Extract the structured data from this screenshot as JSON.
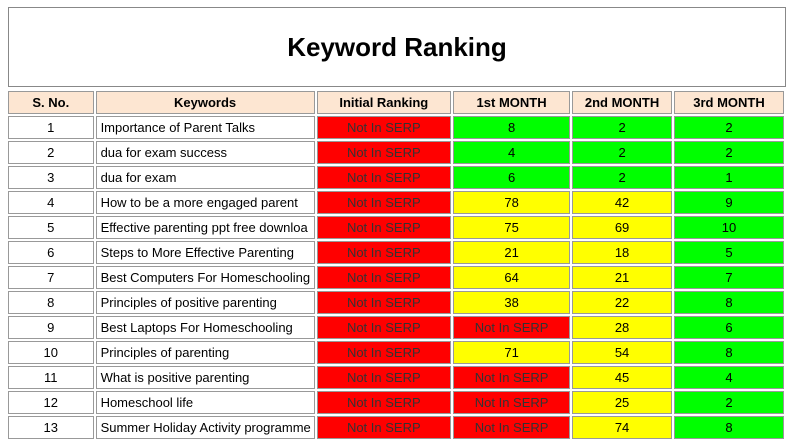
{
  "title": "Keyword Ranking",
  "table": {
    "header": [
      "S. No.",
      "Keywords",
      "Initial Ranking",
      "1st MONTH",
      "2nd MONTH",
      "3rd MONTH"
    ],
    "colors": {
      "red": "#ff0000",
      "yellow": "#ffff00",
      "green": "#00ff00",
      "header": "#fde6d2"
    },
    "rows": [
      [
        1,
        "Importance of Parent Talks",
        "Not In SERP",
        8,
        2,
        2
      ],
      [
        2,
        "dua for exam success",
        "Not In SERP",
        4,
        2,
        2
      ],
      [
        3,
        "dua for exam",
        "Not In SERP",
        6,
        2,
        1
      ],
      [
        4,
        "How to be a more engaged parent",
        "Not In SERP",
        78,
        42,
        9
      ],
      [
        5,
        "Effective parenting ppt free downloa",
        "Not In SERP",
        75,
        69,
        10
      ],
      [
        6,
        "Steps to More Effective Parenting",
        "Not In SERP",
        21,
        18,
        5
      ],
      [
        7,
        "Best Computers For Homeschooling",
        "Not In SERP",
        64,
        21,
        7
      ],
      [
        8,
        "Principles of positive parenting",
        "Not In SERP",
        38,
        22,
        8
      ],
      [
        9,
        "Best Laptops For Homeschooling",
        "Not In SERP",
        "Not In SERP",
        28,
        6
      ],
      [
        10,
        "Principles of parenting",
        "Not In SERP",
        71,
        54,
        8
      ],
      [
        11,
        "What is positive parenting",
        "Not In SERP",
        "Not In SERP",
        45,
        4
      ],
      [
        12,
        "Homeschool life",
        "Not In SERP",
        "Not In SERP",
        25,
        2
      ],
      [
        13,
        "Summer Holiday Activity programme",
        "Not In SERP",
        "Not In SERP",
        74,
        8
      ]
    ],
    "fills": [
      [
        "red",
        "green",
        "green",
        "green"
      ],
      [
        "red",
        "green",
        "green",
        "green"
      ],
      [
        "red",
        "green",
        "green",
        "green"
      ],
      [
        "red",
        "yellow",
        "yellow",
        "green"
      ],
      [
        "red",
        "yellow",
        "yellow",
        "green"
      ],
      [
        "red",
        "yellow",
        "yellow",
        "green"
      ],
      [
        "red",
        "yellow",
        "yellow",
        "green"
      ],
      [
        "red",
        "yellow",
        "yellow",
        "green"
      ],
      [
        "red",
        "red",
        "yellow",
        "green"
      ],
      [
        "red",
        "yellow",
        "yellow",
        "green"
      ],
      [
        "red",
        "red",
        "yellow",
        "green"
      ],
      [
        "red",
        "red",
        "yellow",
        "green"
      ],
      [
        "red",
        "red",
        "yellow",
        "green"
      ]
    ]
  }
}
